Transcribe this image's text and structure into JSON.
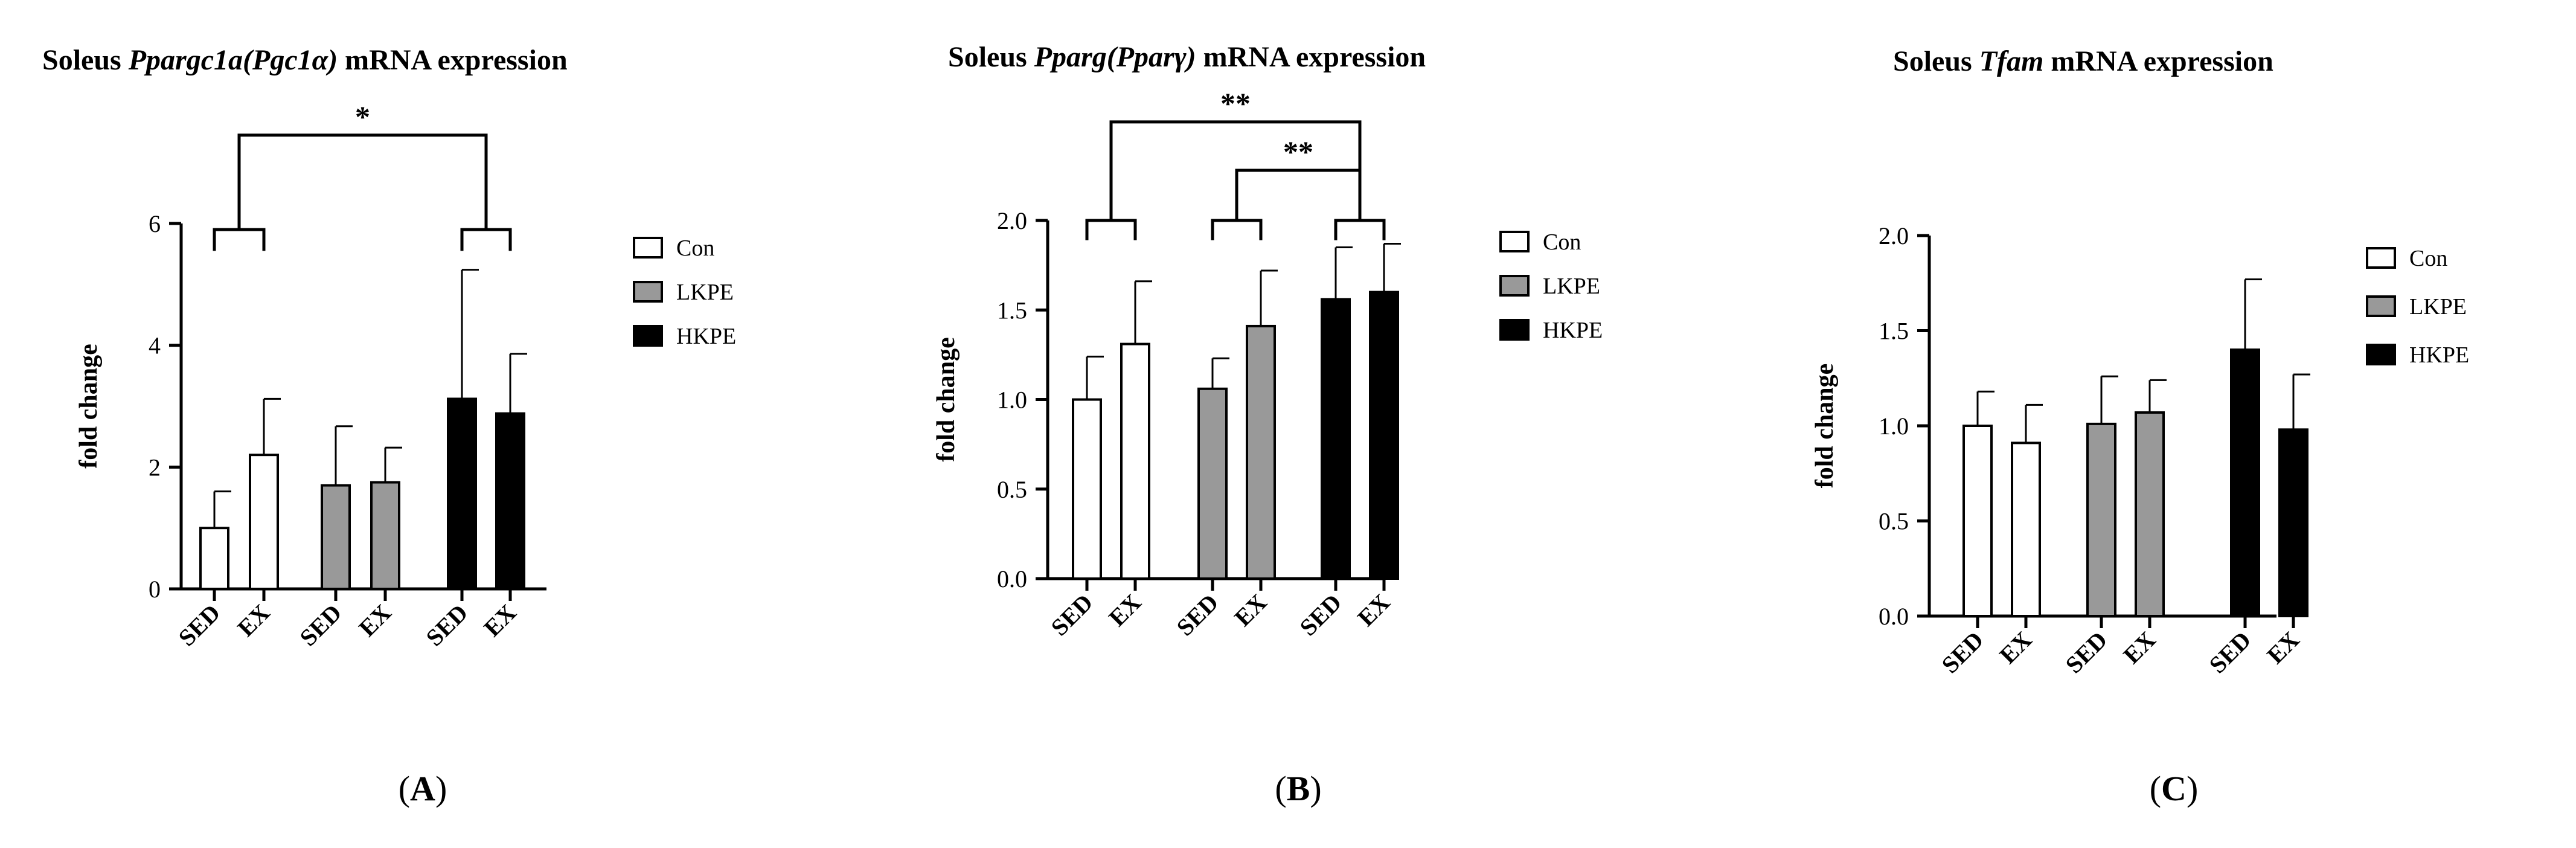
{
  "colors": {
    "Con": "#ffffff",
    "LKPE": "#999999",
    "HKPE": "#000000",
    "axis": "#000000"
  },
  "chart_data": [
    {
      "type": "bar",
      "title_pre": "Soleus ",
      "title_italic": "Ppargc1a(Pgc1α)",
      "title_post": " mRNA expression",
      "panel_label": "(A)",
      "panel_letter": "A",
      "ylabel": "fold change",
      "ylim": [
        0,
        6
      ],
      "yticks": [
        "0",
        "2",
        "4",
        "6"
      ],
      "ytick_values": [
        0,
        2,
        4,
        6
      ],
      "categories": [
        "SED",
        "EX",
        "SED",
        "EX",
        "SED",
        "EX"
      ],
      "groups": [
        "Con",
        "Con",
        "LKPE",
        "LKPE",
        "HKPE",
        "HKPE"
      ],
      "values": [
        1.0,
        2.2,
        1.7,
        1.75,
        3.12,
        2.88
      ],
      "errors": [
        0.6,
        0.92,
        0.97,
        0.57,
        2.12,
        0.98
      ],
      "legend": [
        "Con",
        "LKPE",
        "HKPE"
      ],
      "significance": [
        "*"
      ],
      "brackets": [
        {
          "label": "*",
          "left_pair": [
            0,
            1
          ],
          "right_pair": [
            4,
            5
          ],
          "top": 7.45,
          "pair_top": 5.9,
          "pair_foot": 5.55
        }
      ]
    },
    {
      "type": "bar",
      "title_pre": "Soleus ",
      "title_italic": "Pparg(Pparγ)",
      "title_post": " mRNA expression",
      "panel_label": "(B)",
      "panel_letter": "B",
      "ylabel": "fold change",
      "ylim": [
        0,
        2.0
      ],
      "yticks": [
        "0.0",
        "0.5",
        "1.0",
        "1.5",
        "2.0"
      ],
      "ytick_values": [
        0,
        0.5,
        1.0,
        1.5,
        2.0
      ],
      "categories": [
        "SED",
        "EX",
        "SED",
        "EX",
        "SED",
        "EX"
      ],
      "groups": [
        "Con",
        "Con",
        "LKPE",
        "LKPE",
        "HKPE",
        "HKPE"
      ],
      "values": [
        1.0,
        1.31,
        1.06,
        1.41,
        1.56,
        1.6
      ],
      "errors": [
        0.24,
        0.35,
        0.17,
        0.31,
        0.29,
        0.27
      ],
      "legend": [
        "Con",
        "LKPE",
        "HKPE"
      ],
      "significance": [
        "**",
        "**"
      ],
      "brackets": [
        {
          "label": "**",
          "left_pair": [
            0,
            1
          ],
          "right_pair": [
            4,
            5
          ],
          "top": 2.55,
          "pair_top": 2.0,
          "pair_foot": 1.89
        },
        {
          "label": "**",
          "left_pair": [
            2,
            3
          ],
          "right_pair": [
            4,
            5
          ],
          "top": 2.28,
          "pair_top": 2.0,
          "pair_foot": 1.89
        }
      ]
    },
    {
      "type": "bar",
      "title_pre": "Soleus ",
      "title_italic": "Tfam",
      "title_post": " mRNA expression",
      "panel_label": "(C)",
      "panel_letter": "C",
      "ylabel": "fold change",
      "ylim": [
        0,
        2.0
      ],
      "yticks": [
        "0.0",
        "0.5",
        "1.0",
        "1.5",
        "2.0"
      ],
      "ytick_values": [
        0,
        0.5,
        1.0,
        1.5,
        2.0
      ],
      "categories": [
        "SED",
        "EX",
        "SED",
        "EX",
        "SED",
        "EX"
      ],
      "groups": [
        "Con",
        "Con",
        "LKPE",
        "LKPE",
        "HKPE",
        "HKPE"
      ],
      "values": [
        1.0,
        0.91,
        1.01,
        1.07,
        1.4,
        0.98
      ],
      "errors": [
        0.18,
        0.2,
        0.25,
        0.17,
        0.37,
        0.29
      ],
      "legend": [
        "Con",
        "LKPE",
        "HKPE"
      ],
      "significance": [],
      "brackets": []
    }
  ]
}
